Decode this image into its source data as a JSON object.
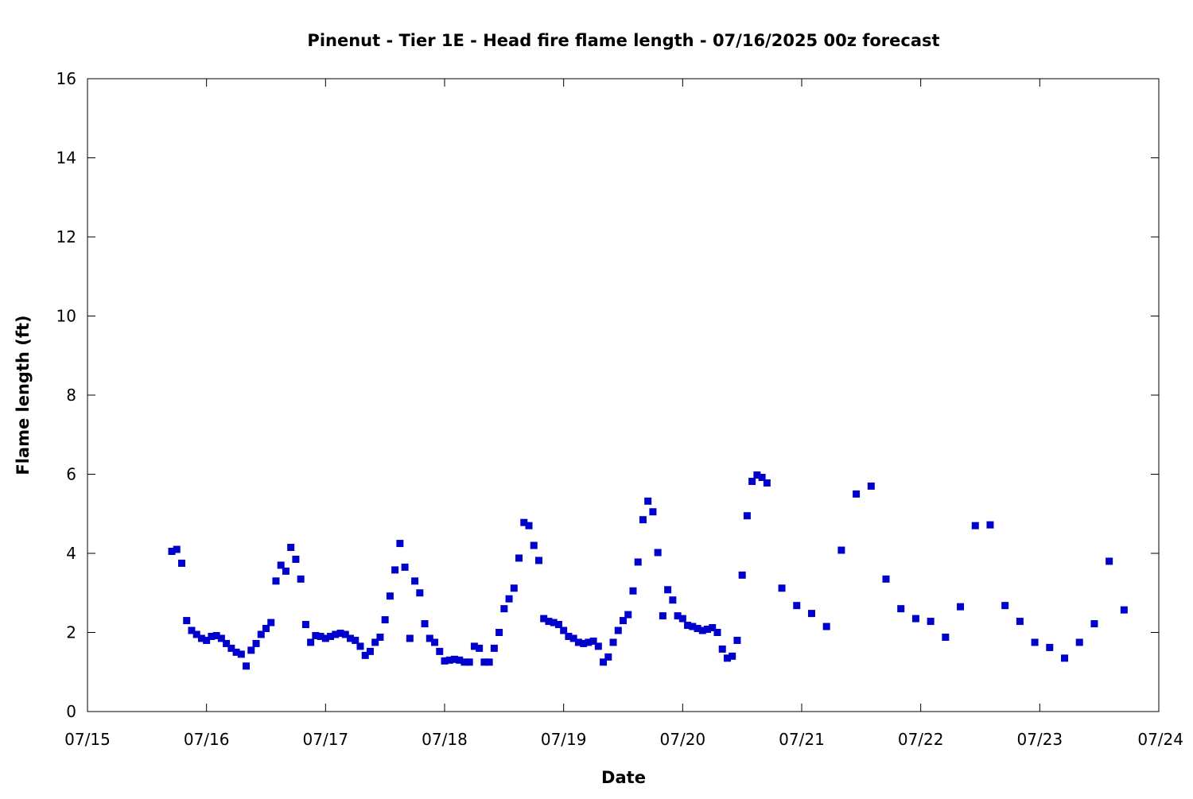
{
  "chart_data": {
    "type": "scatter",
    "title": "Pinenut - Tier 1E - Head fire flame length - 07/16/2025 00z forecast",
    "xlabel": "Date",
    "ylabel": "Flame length (ft)",
    "xlim": [
      "07/15",
      "07/24"
    ],
    "ylim": [
      0,
      16
    ],
    "x_ticks": [
      "07/15",
      "07/16",
      "07/17",
      "07/18",
      "07/19",
      "07/20",
      "07/21",
      "07/22",
      "07/23",
      "07/24"
    ],
    "y_ticks": [
      0,
      2,
      4,
      6,
      8,
      10,
      12,
      14,
      16
    ],
    "grid": false,
    "legend": "none",
    "colors": {
      "marker": "#0000cc",
      "axes": "#000000"
    },
    "series": [
      {
        "points": [
          [
            "07/15 17:00",
            4.05
          ],
          [
            "07/15 18:00",
            4.1
          ],
          [
            "07/15 19:00",
            3.75
          ],
          [
            "07/15 20:00",
            2.3
          ],
          [
            "07/15 21:00",
            2.05
          ],
          [
            "07/15 22:00",
            1.95
          ],
          [
            "07/15 23:00",
            1.85
          ],
          [
            "07/16 00:00",
            1.8
          ],
          [
            "07/16 01:00",
            1.9
          ],
          [
            "07/16 02:00",
            1.92
          ],
          [
            "07/16 03:00",
            1.85
          ],
          [
            "07/16 04:00",
            1.72
          ],
          [
            "07/16 05:00",
            1.6
          ],
          [
            "07/16 06:00",
            1.5
          ],
          [
            "07/16 07:00",
            1.45
          ],
          [
            "07/16 08:00",
            1.15
          ],
          [
            "07/16 09:00",
            1.55
          ],
          [
            "07/16 10:00",
            1.72
          ],
          [
            "07/16 11:00",
            1.95
          ],
          [
            "07/16 12:00",
            2.1
          ],
          [
            "07/16 13:00",
            2.25
          ],
          [
            "07/16 14:00",
            3.3
          ],
          [
            "07/16 15:00",
            3.7
          ],
          [
            "07/16 16:00",
            3.55
          ],
          [
            "07/16 17:00",
            4.15
          ],
          [
            "07/16 18:00",
            3.85
          ],
          [
            "07/16 19:00",
            3.35
          ],
          [
            "07/16 20:00",
            2.2
          ],
          [
            "07/16 21:00",
            1.75
          ],
          [
            "07/16 22:00",
            1.92
          ],
          [
            "07/16 23:00",
            1.9
          ],
          [
            "07/17 00:00",
            1.85
          ],
          [
            "07/17 01:00",
            1.9
          ],
          [
            "07/17 02:00",
            1.95
          ],
          [
            "07/17 03:00",
            1.98
          ],
          [
            "07/17 04:00",
            1.95
          ],
          [
            "07/17 05:00",
            1.85
          ],
          [
            "07/17 06:00",
            1.8
          ],
          [
            "07/17 07:00",
            1.65
          ],
          [
            "07/17 08:00",
            1.42
          ],
          [
            "07/17 09:00",
            1.52
          ],
          [
            "07/17 10:00",
            1.75
          ],
          [
            "07/17 11:00",
            1.88
          ],
          [
            "07/17 12:00",
            2.32
          ],
          [
            "07/17 13:00",
            2.92
          ],
          [
            "07/17 14:00",
            3.58
          ],
          [
            "07/17 15:00",
            4.25
          ],
          [
            "07/17 16:00",
            3.65
          ],
          [
            "07/17 17:00",
            1.85
          ],
          [
            "07/17 18:00",
            3.3
          ],
          [
            "07/17 19:00",
            3.0
          ],
          [
            "07/17 20:00",
            2.22
          ],
          [
            "07/17 21:00",
            1.85
          ],
          [
            "07/17 22:00",
            1.75
          ],
          [
            "07/17 23:00",
            1.52
          ],
          [
            "07/18 00:00",
            1.28
          ],
          [
            "07/18 01:00",
            1.3
          ],
          [
            "07/18 02:00",
            1.32
          ],
          [
            "07/18 03:00",
            1.3
          ],
          [
            "07/18 04:00",
            1.25
          ],
          [
            "07/18 05:00",
            1.25
          ],
          [
            "07/18 06:00",
            1.65
          ],
          [
            "07/18 07:00",
            1.6
          ],
          [
            "07/18 08:00",
            1.25
          ],
          [
            "07/18 09:00",
            1.25
          ],
          [
            "07/18 10:00",
            1.6
          ],
          [
            "07/18 11:00",
            2.0
          ],
          [
            "07/18 12:00",
            2.6
          ],
          [
            "07/18 13:00",
            2.85
          ],
          [
            "07/18 14:00",
            3.12
          ],
          [
            "07/18 15:00",
            3.88
          ],
          [
            "07/18 16:00",
            4.78
          ],
          [
            "07/18 17:00",
            4.7
          ],
          [
            "07/18 18:00",
            4.2
          ],
          [
            "07/18 19:00",
            3.82
          ],
          [
            "07/18 20:00",
            2.35
          ],
          [
            "07/18 21:00",
            2.28
          ],
          [
            "07/18 22:00",
            2.25
          ],
          [
            "07/18 23:00",
            2.2
          ],
          [
            "07/19 00:00",
            2.05
          ],
          [
            "07/19 01:00",
            1.9
          ],
          [
            "07/19 02:00",
            1.85
          ],
          [
            "07/19 03:00",
            1.75
          ],
          [
            "07/19 04:00",
            1.72
          ],
          [
            "07/19 05:00",
            1.75
          ],
          [
            "07/19 06:00",
            1.78
          ],
          [
            "07/19 07:00",
            1.65
          ],
          [
            "07/19 08:00",
            1.25
          ],
          [
            "07/19 09:00",
            1.38
          ],
          [
            "07/19 10:00",
            1.75
          ],
          [
            "07/19 11:00",
            2.05
          ],
          [
            "07/19 12:00",
            2.3
          ],
          [
            "07/19 13:00",
            2.45
          ],
          [
            "07/19 14:00",
            3.05
          ],
          [
            "07/19 15:00",
            3.78
          ],
          [
            "07/19 16:00",
            4.85
          ],
          [
            "07/19 17:00",
            5.32
          ],
          [
            "07/19 18:00",
            5.05
          ],
          [
            "07/19 19:00",
            4.02
          ],
          [
            "07/19 20:00",
            2.42
          ],
          [
            "07/19 21:00",
            3.08
          ],
          [
            "07/19 22:00",
            2.82
          ],
          [
            "07/19 23:00",
            2.42
          ],
          [
            "07/20 00:00",
            2.35
          ],
          [
            "07/20 01:00",
            2.18
          ],
          [
            "07/20 02:00",
            2.15
          ],
          [
            "07/20 03:00",
            2.1
          ],
          [
            "07/20 04:00",
            2.05
          ],
          [
            "07/20 05:00",
            2.08
          ],
          [
            "07/20 06:00",
            2.12
          ],
          [
            "07/20 07:00",
            2.0
          ],
          [
            "07/20 08:00",
            1.58
          ],
          [
            "07/20 09:00",
            1.35
          ],
          [
            "07/20 10:00",
            1.4
          ],
          [
            "07/20 11:00",
            1.8
          ],
          [
            "07/20 12:00",
            3.45
          ],
          [
            "07/20 13:00",
            4.95
          ],
          [
            "07/20 14:00",
            5.82
          ],
          [
            "07/20 15:00",
            5.98
          ],
          [
            "07/20 16:00",
            5.92
          ],
          [
            "07/20 17:00",
            5.78
          ],
          [
            "07/20 20:00",
            3.12
          ],
          [
            "07/20 23:00",
            2.68
          ],
          [
            "07/21 02:00",
            2.48
          ],
          [
            "07/21 05:00",
            2.15
          ],
          [
            "07/21 08:00",
            4.08
          ],
          [
            "07/21 11:00",
            5.5
          ],
          [
            "07/21 14:00",
            5.7
          ],
          [
            "07/21 17:00",
            3.35
          ],
          [
            "07/21 20:00",
            2.6
          ],
          [
            "07/21 23:00",
            2.35
          ],
          [
            "07/22 02:00",
            2.28
          ],
          [
            "07/22 05:00",
            1.88
          ],
          [
            "07/22 08:00",
            2.65
          ],
          [
            "07/22 11:00",
            4.7
          ],
          [
            "07/22 14:00",
            4.72
          ],
          [
            "07/22 17:00",
            2.68
          ],
          [
            "07/22 20:00",
            2.28
          ],
          [
            "07/22 23:00",
            1.75
          ],
          [
            "07/23 02:00",
            1.62
          ],
          [
            "07/23 05:00",
            1.35
          ],
          [
            "07/23 08:00",
            1.75
          ],
          [
            "07/23 11:00",
            2.22
          ],
          [
            "07/23 14:00",
            3.8
          ],
          [
            "07/23 17:00",
            2.57
          ]
        ]
      }
    ]
  }
}
